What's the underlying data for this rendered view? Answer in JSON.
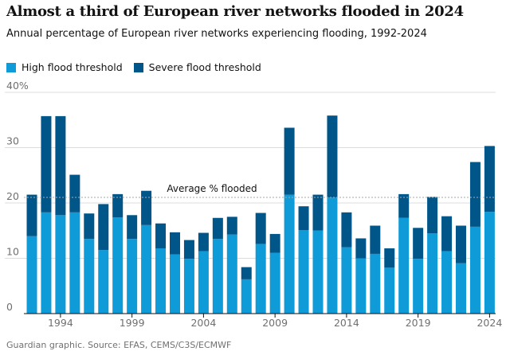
{
  "title": "Almost a third of European river networks flooded in 2024",
  "subtitle": "Annual percentage of European river networks experiencing flooding, 1992-2024",
  "legend": {
    "high_label": "High flood threshold",
    "severe_label": "Severe flood threshold"
  },
  "source": "Guardian graphic. Source: EFAS, CEMS/C3S/ECMWF",
  "colors": {
    "high": "#0f9ad8",
    "severe": "#005689",
    "grid": "#dcdcdc",
    "axis": "#121212",
    "average": "#aaaaaa"
  },
  "chart_data": {
    "type": "bar",
    "stacked": true,
    "x": [
      1992,
      1993,
      1994,
      1995,
      1996,
      1997,
      1998,
      1999,
      2000,
      2001,
      2002,
      2003,
      2004,
      2005,
      2006,
      2007,
      2008,
      2009,
      2010,
      2011,
      2012,
      2013,
      2014,
      2015,
      2016,
      2017,
      2018,
      2019,
      2020,
      2021,
      2022,
      2023,
      2024
    ],
    "series": [
      {
        "name": "High flood threshold",
        "values": [
          14,
          18.3,
          17.8,
          18.3,
          13.5,
          11.5,
          17.4,
          13.5,
          16,
          11.8,
          10.7,
          9.9,
          11.3,
          13.5,
          14.3,
          6.2,
          12.6,
          11,
          21.5,
          15.1,
          15,
          21,
          12,
          10,
          10.8,
          8.3,
          17.3,
          9.9,
          14.5,
          11.3,
          9.1,
          15.7,
          18.4
        ]
      },
      {
        "name": "Severe flood threshold",
        "values": [
          7.5,
          17.4,
          17.9,
          6.8,
          4.6,
          8.3,
          4.2,
          4.3,
          6.2,
          4.5,
          4,
          3.4,
          3.3,
          3.8,
          3.2,
          2.2,
          5.6,
          3.4,
          12.1,
          4.3,
          6.5,
          14.8,
          6.3,
          3.6,
          5.1,
          3.5,
          4.3,
          5.6,
          6.6,
          6.3,
          6.8,
          11.7,
          11.9
        ]
      }
    ],
    "average_line": {
      "label": "Average % flooded",
      "value": 21
    },
    "ylim": [
      0,
      40
    ],
    "yticks": [
      0,
      10,
      20,
      30,
      40
    ],
    "ytick_labels": [
      "0",
      "10",
      "20",
      "30",
      "40%"
    ],
    "xticks": [
      1994,
      1999,
      2004,
      2009,
      2014,
      2019,
      2024
    ],
    "xlabel": "",
    "ylabel": "",
    "grid": true
  }
}
